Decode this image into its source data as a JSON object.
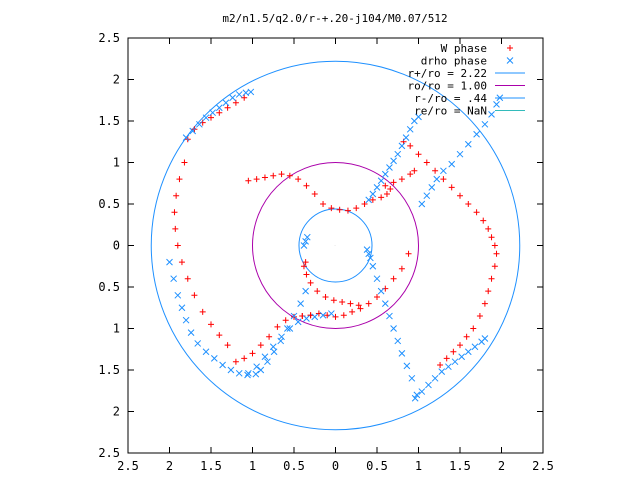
{
  "chart_data": {
    "type": "scatter",
    "title": "m2/n1.5/q2.0/r-+.20-j104/M0.07/512",
    "xlabel": "",
    "ylabel": "",
    "xlim": [
      -2.5,
      2.5
    ],
    "ylim": [
      -2.5,
      2.5
    ],
    "x_tick_values": [
      -2.5,
      -2,
      -1.5,
      -1,
      -0.5,
      0,
      0.5,
      1,
      1.5,
      2,
      2.5
    ],
    "x_tick_labels": [
      "2.5",
      "2",
      "1.5",
      "1",
      "0.5",
      "0",
      "0.5",
      "1",
      "1.5",
      "2",
      "2.5"
    ],
    "y_tick_values": [
      2.5,
      2,
      1.5,
      1,
      0.5,
      0,
      -0.5,
      -1,
      -1.5,
      -2,
      -2.5
    ],
    "y_tick_labels": [
      "2.5",
      "2",
      "1.5",
      "1",
      "0.5",
      "0",
      "0.5",
      "1",
      "1.5",
      "2",
      "2.5"
    ],
    "grid": false,
    "legend_position": "top-right",
    "legend": [
      {
        "label": "W phase",
        "marker": "plus",
        "color": "#ff0000"
      },
      {
        "label": "drho phase",
        "marker": "cross",
        "color": "#1e90ff"
      },
      {
        "label": "r+/ro = 2.22",
        "marker": "line",
        "color": "#1e90ff"
      },
      {
        "label": "ro/ro = 1.00",
        "marker": "line",
        "color": "#aa00aa"
      },
      {
        "label": "r-/ro = .44",
        "marker": "line",
        "color": "#1e90ff"
      },
      {
        "label": "re/ro = NaN",
        "marker": "line",
        "color": "#33bbbb"
      }
    ],
    "circles": [
      {
        "name": "r+/ro = 2.22",
        "r": 2.22,
        "color": "#1e90ff"
      },
      {
        "name": "ro/ro = 1.00",
        "r": 1.0,
        "color": "#aa00aa"
      },
      {
        "name": "r-/ro = .44",
        "r": 0.44,
        "color": "#1e90ff"
      }
    ],
    "series": [
      {
        "name": "W phase",
        "marker": "plus",
        "color": "#ff0000",
        "x": [
          -1.78,
          -1.7,
          -1.6,
          -1.5,
          -1.4,
          -1.3,
          -1.2,
          -1.1,
          -1.82,
          -1.88,
          -1.92,
          -1.94,
          -1.93,
          -1.9,
          -1.85,
          -1.78,
          -1.7,
          -1.6,
          -1.5,
          -1.4,
          -1.3,
          -1.05,
          -0.95,
          -0.85,
          -0.75,
          -0.65,
          -0.55,
          -0.45,
          -0.35,
          -0.25,
          -0.15,
          -0.05,
          0.05,
          0.15,
          0.25,
          0.35,
          0.45,
          0.55,
          0.62,
          0.66,
          -0.36,
          -0.38,
          -0.35,
          -0.3,
          -0.22,
          -0.12,
          -0.02,
          0.08,
          0.18,
          0.28,
          0.82,
          0.9,
          1.0,
          1.1,
          1.2,
          1.3,
          1.4,
          1.5,
          1.6,
          1.7,
          1.78,
          1.84,
          1.88,
          1.92,
          1.94,
          1.92,
          1.88,
          1.84,
          1.8,
          1.74,
          1.66,
          1.58,
          1.5,
          1.42,
          1.34,
          1.26,
          0.6,
          0.7,
          0.8,
          0.9,
          0.95,
          -0.4,
          -0.3,
          -0.2,
          -0.1,
          0.0,
          0.1,
          0.2,
          0.3,
          0.4,
          0.5,
          0.6,
          0.7,
          0.8,
          0.88,
          -1.2,
          -1.1,
          -1.0,
          -0.9,
          -0.8,
          -0.7,
          -0.6,
          -0.5,
          -0.4,
          -0.3
        ],
        "y": [
          1.28,
          1.4,
          1.48,
          1.54,
          1.6,
          1.66,
          1.72,
          1.78,
          1.0,
          0.8,
          0.6,
          0.4,
          0.2,
          0.0,
          -0.2,
          -0.4,
          -0.6,
          -0.8,
          -0.95,
          -1.08,
          -1.2,
          0.78,
          0.8,
          0.82,
          0.84,
          0.86,
          0.84,
          0.8,
          0.72,
          0.62,
          0.5,
          0.45,
          0.43,
          0.42,
          0.45,
          0.5,
          0.55,
          0.58,
          0.62,
          0.68,
          -0.2,
          -0.25,
          -0.35,
          -0.45,
          -0.55,
          -0.62,
          -0.66,
          -0.68,
          -0.7,
          -0.72,
          1.25,
          1.2,
          1.1,
          1.0,
          0.9,
          0.8,
          0.7,
          0.6,
          0.5,
          0.4,
          0.3,
          0.2,
          0.1,
          0.0,
          -0.1,
          -0.25,
          -0.4,
          -0.55,
          -0.7,
          -0.85,
          -1.0,
          -1.1,
          -1.2,
          -1.28,
          -1.36,
          -1.44,
          0.72,
          0.76,
          0.8,
          0.86,
          0.9,
          -0.85,
          -0.84,
          -0.82,
          -0.84,
          -0.86,
          -0.84,
          -0.8,
          -0.76,
          -0.7,
          -0.62,
          -0.52,
          -0.4,
          -0.28,
          -0.1,
          -1.4,
          -1.36,
          -1.3,
          -1.2,
          -1.1,
          -0.98,
          -0.9,
          -0.86,
          -0.85,
          -0.84
        ]
      },
      {
        "name": "drho phase",
        "marker": "cross",
        "color": "#1e90ff",
        "x": [
          -1.8,
          -1.72,
          -1.64,
          -1.56,
          -1.48,
          -1.4,
          -1.32,
          -1.24,
          -1.16,
          -1.08,
          -1.02,
          -2.0,
          -1.95,
          -1.9,
          -1.85,
          -1.8,
          -1.74,
          -1.66,
          -1.56,
          -1.46,
          -1.36,
          -1.26,
          -1.16,
          -1.06,
          -0.96,
          -0.9,
          -0.82,
          -0.74,
          -0.66,
          -0.58,
          -0.5,
          -0.42,
          -0.36,
          -0.38,
          -0.36,
          -0.34,
          0.38,
          0.4,
          0.42,
          0.45,
          0.5,
          0.55,
          0.6,
          0.65,
          0.7,
          0.75,
          0.8,
          0.86,
          0.92,
          0.98,
          1.04,
          1.1,
          1.16,
          1.22,
          1.3,
          1.4,
          1.5,
          1.6,
          1.7,
          1.8,
          1.88,
          1.94,
          1.98,
          0.96,
          1.04,
          1.12,
          1.2,
          1.28,
          1.36,
          1.44,
          1.52,
          1.6,
          1.68,
          1.76,
          1.8,
          0.4,
          0.45,
          0.5,
          0.55,
          0.6,
          0.65,
          0.7,
          0.75,
          0.8,
          0.85,
          0.9,
          0.95,
          1.0,
          -0.05,
          -0.15,
          -0.25,
          -0.35,
          -0.45,
          -0.55,
          -0.65,
          -0.75,
          -0.85,
          -0.95,
          -1.05
        ],
        "y": [
          1.3,
          1.38,
          1.46,
          1.54,
          1.6,
          1.66,
          1.72,
          1.78,
          1.82,
          1.84,
          1.85,
          -0.2,
          -0.4,
          -0.6,
          -0.75,
          -0.9,
          -1.05,
          -1.18,
          -1.28,
          -1.36,
          -1.44,
          -1.5,
          -1.54,
          -1.56,
          -1.55,
          -1.5,
          -1.4,
          -1.28,
          -1.15,
          -1.0,
          -0.85,
          -0.7,
          -0.55,
          0.0,
          0.05,
          0.1,
          -0.05,
          -0.1,
          -0.15,
          -0.25,
          -0.4,
          -0.55,
          -0.7,
          -0.85,
          -1.0,
          -1.15,
          -1.3,
          -1.45,
          -1.6,
          -1.8,
          0.5,
          0.6,
          0.7,
          0.8,
          0.9,
          0.98,
          1.1,
          1.22,
          1.34,
          1.46,
          1.58,
          1.7,
          1.78,
          -1.84,
          -1.76,
          -1.68,
          -1.6,
          -1.52,
          -1.46,
          -1.4,
          -1.34,
          -1.28,
          -1.22,
          -1.16,
          -1.12,
          0.55,
          0.62,
          0.7,
          0.78,
          0.86,
          0.94,
          1.02,
          1.1,
          1.2,
          1.3,
          1.4,
          1.5,
          1.55,
          -0.82,
          -0.84,
          -0.86,
          -0.88,
          -0.92,
          -1.0,
          -1.1,
          -1.22,
          -1.34,
          -1.46,
          -1.54
        ]
      }
    ]
  }
}
